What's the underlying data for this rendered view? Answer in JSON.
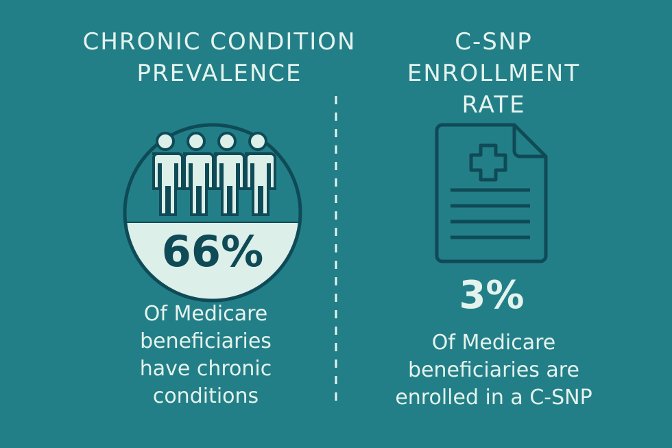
{
  "left": {
    "title_line1": "CHRONIC CONDITION",
    "title_line2": "PREVALENCE",
    "stat": "66%",
    "stat_fraction": 0.66,
    "desc_line1": "Of Medicare",
    "desc_line2": "beneficiaries",
    "desc_line3": "have chronic",
    "desc_line4": "conditions",
    "icon": "people-group-icon"
  },
  "right": {
    "title_line1": "C-SNP",
    "title_line2": "ENROLLMENT",
    "title_line3": "RATE",
    "stat": "3%",
    "desc_line1": "Of Medicare",
    "desc_line2": "beneficiaries are",
    "desc_line3": "enrolled in a C-SNP",
    "icon": "medical-document-icon"
  },
  "colors": {
    "background": "#237f87",
    "text": "#e4f3ee",
    "dark": "#0f4a57"
  }
}
